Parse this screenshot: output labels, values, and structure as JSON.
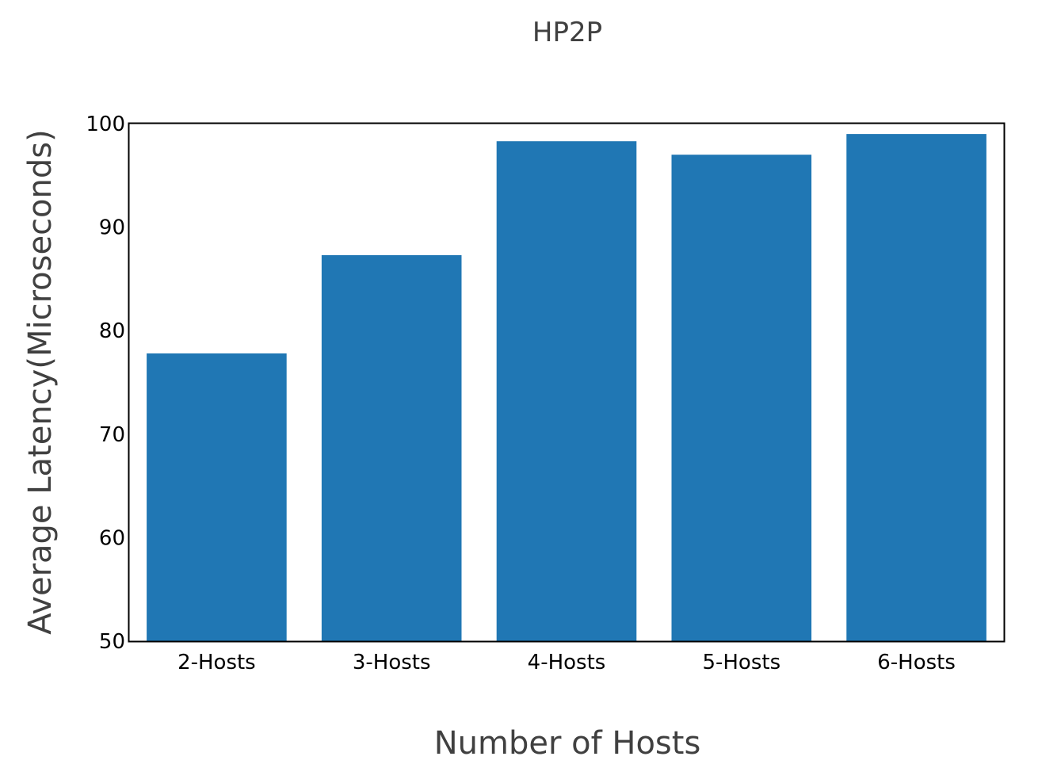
{
  "chart_data": {
    "type": "bar",
    "title": "HP2P",
    "xlabel": "Number of Hosts",
    "ylabel": "Average Latency(Microseconds)",
    "categories": [
      "2-Hosts",
      "3-Hosts",
      "4-Hosts",
      "5-Hosts",
      "6-Hosts"
    ],
    "values": [
      77.8,
      87.3,
      98.3,
      97.0,
      99.0
    ],
    "ylim": [
      50,
      100
    ],
    "yticks": [
      "50",
      "60",
      "70",
      "80",
      "90",
      "100"
    ],
    "grid": false,
    "bar_color": "#2077b4"
  }
}
